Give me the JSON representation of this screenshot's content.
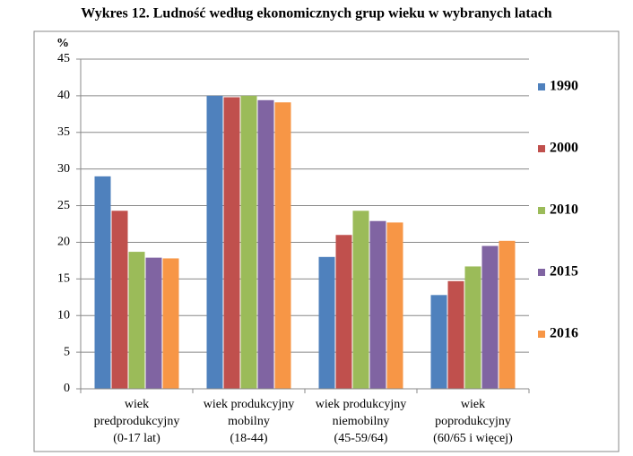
{
  "chart_data": {
    "type": "bar",
    "title": "Wykres 12. Ludność według ekonomicznych grup wieku w wybranych latach",
    "y_label": "%",
    "categories": [
      "wiek\npredprodukcyjny\n(0-17 lat)",
      "wiek produkcyjny\nmobilny\n(18-44)",
      "wiek produkcyjny\nniemobilny\n(45-59/64)",
      "wiek\npoprodukcyjny\n(60/65 i więcej)"
    ],
    "series": [
      {
        "name": "1990",
        "color": "#4f81bd",
        "values": [
          29.0,
          40.0,
          18.0,
          12.8
        ]
      },
      {
        "name": "2000",
        "color": "#c0504d",
        "values": [
          24.3,
          39.8,
          21.0,
          14.7
        ]
      },
      {
        "name": "2010",
        "color": "#9bbb59",
        "values": [
          18.7,
          40.0,
          24.3,
          16.7
        ]
      },
      {
        "name": "2015",
        "color": "#8064a2",
        "values": [
          17.9,
          39.4,
          22.9,
          19.5
        ]
      },
      {
        "name": "2016",
        "color": "#f79646",
        "values": [
          17.8,
          39.1,
          22.7,
          20.2
        ]
      }
    ],
    "ylim": [
      0,
      45
    ],
    "yticks": [
      0,
      5,
      10,
      15,
      20,
      25,
      30,
      35,
      40,
      45
    ],
    "grid": true,
    "legend": "right"
  }
}
